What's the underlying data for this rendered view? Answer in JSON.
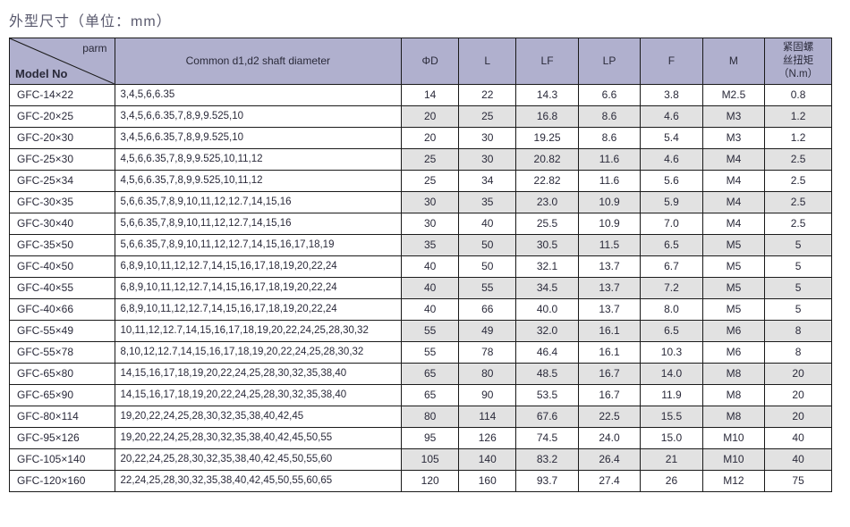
{
  "title": "外型尺寸（单位：mm）",
  "header": {
    "parm": "parm",
    "model": "Model No",
    "shaft": "Common d1,d2 shaft diameter",
    "phiD": "ΦD",
    "L": "L",
    "LF": "LF",
    "LP": "LP",
    "F": "F",
    "M": "M",
    "torque_l1": "紧固螺",
    "torque_l2": "丝扭矩",
    "torque_l3": "（N.m）"
  },
  "widths": {
    "model": 110,
    "shaft": 300,
    "phiD": 60,
    "L": 60,
    "LF": 65,
    "LP": 65,
    "F": 65,
    "M": 65,
    "torque": 70
  },
  "colors": {
    "header_bg": "#b0b0ce",
    "band_bg": "#e2e2e2",
    "plain_bg": "#ffffff",
    "border": "#1a1a1a",
    "text": "#2a2a3a",
    "title_text": "#5a5a6e"
  },
  "rows": [
    {
      "band": false,
      "model": "GFC-14×22",
      "shaft": "3,4,5,6,6.35",
      "phiD": "14",
      "L": "22",
      "LF": "14.3",
      "LP": "6.6",
      "F": "3.8",
      "M": "M2.5",
      "T": "0.8"
    },
    {
      "band": true,
      "model": "GFC-20×25",
      "shaft": "3,4,5,6,6.35,7,8,9,9.525,10",
      "phiD": "20",
      "L": "25",
      "LF": "16.8",
      "LP": "8.6",
      "F": "4.6",
      "M": "M3",
      "T": "1.2"
    },
    {
      "band": false,
      "model": "GFC-20×30",
      "shaft": "3,4,5,6,6.35,7,8,9,9.525,10",
      "phiD": "20",
      "L": "30",
      "LF": "19.25",
      "LP": "8.6",
      "F": "5.4",
      "M": "M3",
      "T": "1.2"
    },
    {
      "band": true,
      "model": "GFC-25×30",
      "shaft": "4,5,6,6.35,7,8,9,9.525,10,11,12",
      "phiD": "25",
      "L": "30",
      "LF": "20.82",
      "LP": "11.6",
      "F": "4.6",
      "M": "M4",
      "T": "2.5"
    },
    {
      "band": false,
      "model": "GFC-25×34",
      "shaft": "4,5,6,6.35,7,8,9,9.525,10,11,12",
      "phiD": "25",
      "L": "34",
      "LF": "22.82",
      "LP": "11.6",
      "F": "5.6",
      "M": "M4",
      "T": "2.5"
    },
    {
      "band": true,
      "model": "GFC-30×35",
      "shaft": "5,6,6.35,7,8,9,10,11,12,12.7,14,15,16",
      "phiD": "30",
      "L": "35",
      "LF": "23.0",
      "LP": "10.9",
      "F": "5.9",
      "M": "M4",
      "T": "2.5"
    },
    {
      "band": false,
      "model": "GFC-30×40",
      "shaft": "5,6,6.35,7,8,9,10,11,12,12.7,14,15,16",
      "phiD": "30",
      "L": "40",
      "LF": "25.5",
      "LP": "10.9",
      "F": "7.0",
      "M": "M4",
      "T": "2.5"
    },
    {
      "band": true,
      "model": "GFC-35×50",
      "shaft": "5,6,6.35,7,8,9,10,11,12,12.7,14,15,16,17,18,19",
      "phiD": "35",
      "L": "50",
      "LF": "30.5",
      "LP": "11.5",
      "F": "6.5",
      "M": "M5",
      "T": "5"
    },
    {
      "band": false,
      "model": "GFC-40×50",
      "shaft": "6,8,9,10,11,12,12.7,14,15,16,17,18,19,20,22,24",
      "phiD": "40",
      "L": "50",
      "LF": "32.1",
      "LP": "13.7",
      "F": "6.7",
      "M": "M5",
      "T": "5"
    },
    {
      "band": true,
      "model": "GFC-40×55",
      "shaft": "6,8,9,10,11,12,12.7,14,15,16,17,18,19,20,22,24",
      "phiD": "40",
      "L": "55",
      "LF": "34.5",
      "LP": "13.7",
      "F": "7.2",
      "M": "M5",
      "T": "5"
    },
    {
      "band": false,
      "model": "GFC-40×66",
      "shaft": "6,8,9,10,11,12,12.7,14,15,16,17,18,19,20,22,24",
      "phiD": "40",
      "L": "66",
      "LF": "40.0",
      "LP": "13.7",
      "F": "8.0",
      "M": "M5",
      "T": "5"
    },
    {
      "band": true,
      "model": "GFC-55×49",
      "shaft": "10,11,12,12.7,14,15,16,17,18,19,20,22,24,25,28,30,32",
      "phiD": "55",
      "L": "49",
      "LF": "32.0",
      "LP": "16.1",
      "F": "6.5",
      "M": "M6",
      "T": "8"
    },
    {
      "band": false,
      "model": "GFC-55×78",
      "shaft": "8,10,12,12.7,14,15,16,17,18,19,20,22,24,25,28,30,32",
      "phiD": "55",
      "L": "78",
      "LF": "46.4",
      "LP": "16.1",
      "F": "10.3",
      "M": "M6",
      "T": "8"
    },
    {
      "band": true,
      "model": "GFC-65×80",
      "shaft": "14,15,16,17,18,19,20,22,24,25,28,30,32,35,38,40",
      "phiD": "65",
      "L": "80",
      "LF": "48.5",
      "LP": "16.7",
      "F": "14.0",
      "M": "M8",
      "T": "20"
    },
    {
      "band": false,
      "model": "GFC-65×90",
      "shaft": "14,15,16,17,18,19,20,22,24,25,28,30,32,35,38,40",
      "phiD": "65",
      "L": "90",
      "LF": "53.5",
      "LP": "16.7",
      "F": "11.9",
      "M": "M8",
      "T": "20"
    },
    {
      "band": true,
      "model": "GFC-80×114",
      "shaft": "19,20,22,24,25,28,30,32,35,38,40,42,45",
      "phiD": "80",
      "L": "114",
      "LF": "67.6",
      "LP": "22.5",
      "F": "15.5",
      "M": "M8",
      "T": "20"
    },
    {
      "band": false,
      "model": "GFC-95×126",
      "shaft": "19,20,22,24,25,28,30,32,35,38,40,42,45,50,55",
      "phiD": "95",
      "L": "126",
      "LF": "74.5",
      "LP": "24.0",
      "F": "15.0",
      "M": "M10",
      "T": "40"
    },
    {
      "band": true,
      "model": "GFC-105×140",
      "shaft": "20,22,24,25,28,30,32,35,38,40,42,45,50,55,60",
      "phiD": "105",
      "L": "140",
      "LF": "83.2",
      "LP": "26.4",
      "F": "21",
      "M": "M10",
      "T": "40"
    },
    {
      "band": false,
      "model": "GFC-120×160",
      "shaft": "22,24,25,28,30,32,35,38,40,42,45,50,55,60,65",
      "phiD": "120",
      "L": "160",
      "LF": "93.7",
      "LP": "27.4",
      "F": "26",
      "M": "M12",
      "T": "75"
    }
  ]
}
